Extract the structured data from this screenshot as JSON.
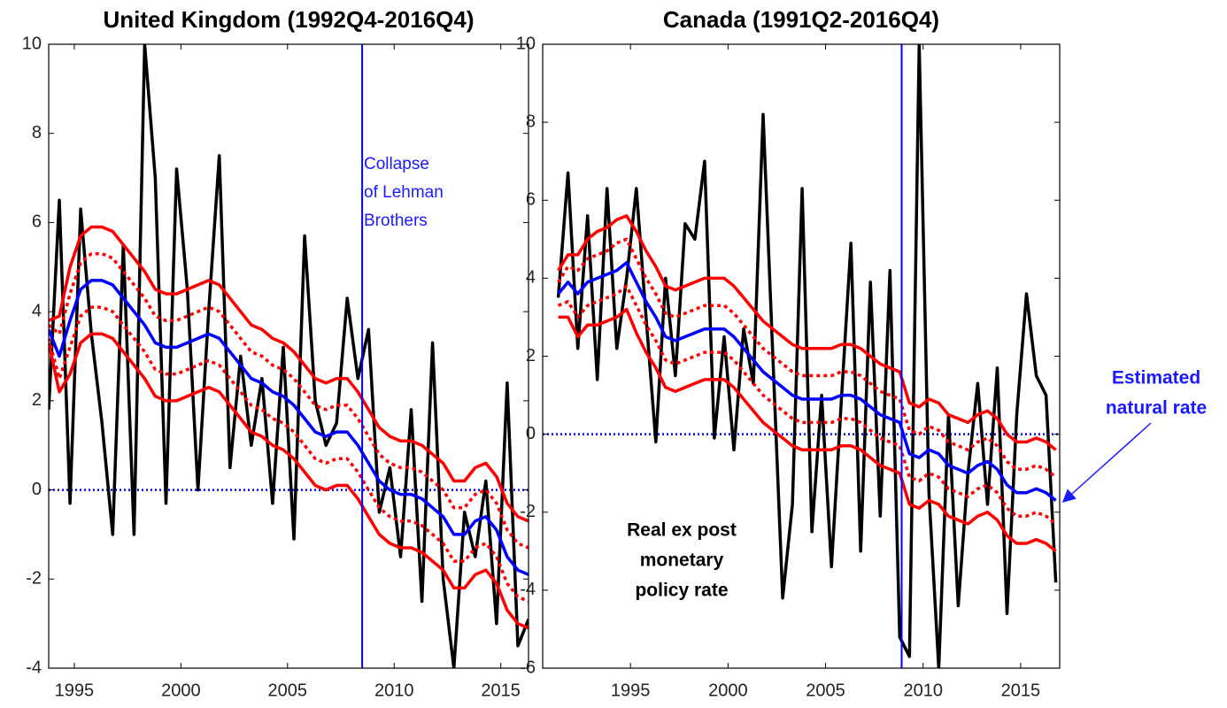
{
  "chart_data": [
    {
      "type": "line",
      "title": "United Kingdom (1992Q4-2016Q4)",
      "xlim": [
        1993.8,
        2016.3
      ],
      "xticks": [
        1995,
        2000,
        2005,
        2010,
        2015
      ],
      "ylim": [
        -4,
        10
      ],
      "yticks": [
        -4,
        -2,
        0,
        2,
        4,
        6,
        8,
        10
      ],
      "vline": 2008.5,
      "vline_color": "#0000ff",
      "hline": 0,
      "hline_color": "#0000ff",
      "annotation": [
        "Collapse",
        "of Lehman",
        "Brothers"
      ],
      "x": [
        1993.8,
        1994.3,
        1994.8,
        1995.3,
        1995.8,
        1996.3,
        1996.8,
        1997.3,
        1997.8,
        1998.3,
        1998.8,
        1999.3,
        1999.8,
        2000.3,
        2000.8,
        2001.3,
        2001.8,
        2002.3,
        2002.8,
        2003.3,
        2003.8,
        2004.3,
        2004.8,
        2005.3,
        2005.8,
        2006.3,
        2006.8,
        2007.3,
        2007.8,
        2008.3,
        2008.8,
        2009.3,
        2009.8,
        2010.3,
        2010.8,
        2011.3,
        2011.8,
        2012.3,
        2012.8,
        2013.3,
        2013.8,
        2014.3,
        2014.8,
        2015.3,
        2015.8,
        2016.3
      ],
      "series": [
        {
          "color": "#000000",
          "style": "solid",
          "values": [
            1.8,
            6.5,
            -0.3,
            6.3,
            3.5,
            1.5,
            -1.0,
            5.5,
            -1.0,
            10.0,
            7.0,
            -0.3,
            7.2,
            4.5,
            0.0,
            4.0,
            7.5,
            0.5,
            3.0,
            1.0,
            2.5,
            -0.3,
            3.2,
            -1.1,
            5.7,
            2.0,
            1.0,
            1.5,
            4.3,
            2.5,
            3.6,
            -0.5,
            0.5,
            -1.5,
            1.8,
            -2.5,
            3.3,
            -2.0,
            -4.0,
            -0.5,
            -1.5,
            0.2,
            -3.0,
            2.4,
            -3.5,
            -2.9
          ]
        },
        {
          "color": "#ff0000",
          "style": "solid",
          "values": [
            3.8,
            3.9,
            5.0,
            5.7,
            5.9,
            5.9,
            5.8,
            5.5,
            5.2,
            4.9,
            4.5,
            4.4,
            4.4,
            4.5,
            4.6,
            4.7,
            4.6,
            4.3,
            4.0,
            3.7,
            3.6,
            3.4,
            3.3,
            3.1,
            2.8,
            2.5,
            2.4,
            2.5,
            2.5,
            2.2,
            1.8,
            1.4,
            1.2,
            1.1,
            1.1,
            1.0,
            0.8,
            0.6,
            0.2,
            0.2,
            0.5,
            0.6,
            0.3,
            -0.3,
            -0.6,
            -0.7
          ]
        },
        {
          "color": "#ff0000",
          "style": "dotted",
          "values": [
            3.7,
            3.5,
            4.4,
            5.1,
            5.3,
            5.3,
            5.2,
            4.9,
            4.6,
            4.3,
            3.9,
            3.8,
            3.8,
            3.9,
            4.0,
            4.1,
            4.0,
            3.7,
            3.4,
            3.1,
            3.0,
            2.8,
            2.7,
            2.5,
            2.2,
            1.9,
            1.8,
            1.9,
            1.9,
            1.6,
            1.2,
            0.8,
            0.6,
            0.5,
            0.5,
            0.4,
            0.2,
            0.0,
            -0.4,
            -0.4,
            -0.1,
            0.0,
            -0.3,
            -0.9,
            -1.2,
            -1.3
          ]
        },
        {
          "color": "#ff0000",
          "style": "dotted",
          "values": [
            3.4,
            2.5,
            3.2,
            3.9,
            4.1,
            4.1,
            4.0,
            3.7,
            3.4,
            3.1,
            2.7,
            2.6,
            2.6,
            2.7,
            2.8,
            2.9,
            2.8,
            2.5,
            2.2,
            1.9,
            1.8,
            1.6,
            1.5,
            1.3,
            1.0,
            0.7,
            0.6,
            0.7,
            0.7,
            0.4,
            0.0,
            -0.4,
            -0.6,
            -0.7,
            -0.7,
            -0.8,
            -1.0,
            -1.2,
            -1.6,
            -1.6,
            -1.3,
            -1.2,
            -1.5,
            -2.1,
            -2.4,
            -2.5
          ]
        },
        {
          "color": "#ff0000",
          "style": "solid",
          "values": [
            3.3,
            2.2,
            2.6,
            3.3,
            3.5,
            3.5,
            3.4,
            3.1,
            2.8,
            2.5,
            2.1,
            2.0,
            2.0,
            2.1,
            2.2,
            2.3,
            2.2,
            1.9,
            1.6,
            1.3,
            1.2,
            1.0,
            0.9,
            0.7,
            0.4,
            0.1,
            0.0,
            0.1,
            0.1,
            -0.2,
            -0.6,
            -1.0,
            -1.2,
            -1.3,
            -1.3,
            -1.4,
            -1.6,
            -1.8,
            -2.2,
            -2.2,
            -1.9,
            -1.8,
            -2.1,
            -2.7,
            -3.0,
            -3.1
          ]
        },
        {
          "color": "#0000ff",
          "style": "solid",
          "values": [
            3.6,
            3.0,
            3.8,
            4.5,
            4.7,
            4.7,
            4.6,
            4.3,
            4.0,
            3.7,
            3.3,
            3.2,
            3.2,
            3.3,
            3.4,
            3.5,
            3.4,
            3.1,
            2.8,
            2.5,
            2.4,
            2.2,
            2.1,
            1.9,
            1.6,
            1.3,
            1.2,
            1.3,
            1.3,
            1.0,
            0.6,
            0.2,
            0.0,
            -0.1,
            -0.1,
            -0.2,
            -0.4,
            -0.6,
            -1.0,
            -1.0,
            -0.7,
            -0.6,
            -0.9,
            -1.5,
            -1.8,
            -1.9
          ]
        }
      ]
    },
    {
      "type": "line",
      "title": "Canada (1991Q2-2016Q4)",
      "xlim": [
        1990.5,
        2017
      ],
      "xticks": [
        1995,
        2000,
        2005,
        2010,
        2015
      ],
      "ylim": [
        -6,
        10
      ],
      "yticks": [
        -6,
        -4,
        -2,
        0,
        2,
        4,
        6,
        8,
        10
      ],
      "vline": 2008.9,
      "vline_color": "#0000ff",
      "hline": 0,
      "hline_color": "#0000ff",
      "annotation": [
        "Real ex post",
        "monetary",
        "policy rate"
      ],
      "annotation2": [
        "Estimated",
        "natural rate"
      ],
      "x": [
        1991.3,
        1991.8,
        1992.3,
        1992.8,
        1993.3,
        1993.8,
        1994.3,
        1994.8,
        1995.3,
        1995.8,
        1996.3,
        1996.8,
        1997.3,
        1997.8,
        1998.3,
        1998.8,
        1999.3,
        1999.8,
        2000.3,
        2000.8,
        2001.3,
        2001.8,
        2002.3,
        2002.8,
        2003.3,
        2003.8,
        2004.3,
        2004.8,
        2005.3,
        2005.8,
        2006.3,
        2006.8,
        2007.3,
        2007.8,
        2008.3,
        2008.8,
        2009.3,
        2009.8,
        2010.3,
        2010.8,
        2011.3,
        2011.8,
        2012.3,
        2012.8,
        2013.3,
        2013.8,
        2014.3,
        2014.8,
        2015.3,
        2015.8,
        2016.3,
        2016.8
      ],
      "series": [
        {
          "color": "#000000",
          "style": "solid",
          "values": [
            3.5,
            6.7,
            2.2,
            5.6,
            1.4,
            6.3,
            2.2,
            4.0,
            6.3,
            3.0,
            -0.2,
            4.0,
            1.5,
            5.4,
            5.0,
            7.0,
            -0.1,
            2.5,
            -0.4,
            2.7,
            1.3,
            8.2,
            2.0,
            -4.2,
            -1.8,
            6.3,
            -2.5,
            1.0,
            -3.4,
            0.8,
            4.9,
            -3.0,
            3.9,
            -2.1,
            4.2,
            -5.2,
            -5.7,
            10.0,
            -1.5,
            -6.0,
            0.5,
            -4.4,
            -1.0,
            1.3,
            -1.8,
            1.7,
            -4.6,
            0.5,
            3.6,
            1.5,
            1.0,
            -3.8
          ]
        },
        {
          "color": "#ff0000",
          "style": "solid",
          "values": [
            4.2,
            4.6,
            4.6,
            5.0,
            5.2,
            5.3,
            5.5,
            5.6,
            5.2,
            4.7,
            4.3,
            3.8,
            3.7,
            3.8,
            3.9,
            4.0,
            4.0,
            4.0,
            3.8,
            3.5,
            3.2,
            2.9,
            2.7,
            2.5,
            2.3,
            2.2,
            2.2,
            2.2,
            2.2,
            2.3,
            2.3,
            2.2,
            2.0,
            1.8,
            1.7,
            1.6,
            0.8,
            0.7,
            0.9,
            0.8,
            0.5,
            0.4,
            0.3,
            0.5,
            0.6,
            0.4,
            0.0,
            -0.2,
            -0.2,
            -0.1,
            -0.2,
            -0.4
          ]
        },
        {
          "color": "#ff0000",
          "style": "dotted",
          "values": [
            3.9,
            4.3,
            4.2,
            4.5,
            4.6,
            4.7,
            4.9,
            5.0,
            4.5,
            4.0,
            3.6,
            3.1,
            3.0,
            3.1,
            3.2,
            3.3,
            3.3,
            3.3,
            3.1,
            2.8,
            2.5,
            2.2,
            2.0,
            1.8,
            1.6,
            1.5,
            1.5,
            1.5,
            1.5,
            1.6,
            1.6,
            1.5,
            1.3,
            1.1,
            1.0,
            0.9,
            0.1,
            0.0,
            0.2,
            0.1,
            -0.2,
            -0.3,
            -0.4,
            -0.2,
            -0.1,
            -0.3,
            -0.7,
            -0.9,
            -0.9,
            -0.8,
            -0.9,
            -1.1
          ]
        },
        {
          "color": "#ff0000",
          "style": "dotted",
          "values": [
            3.3,
            3.4,
            3.0,
            3.3,
            3.4,
            3.5,
            3.6,
            3.8,
            3.3,
            2.8,
            2.4,
            1.9,
            1.8,
            1.9,
            2.0,
            2.1,
            2.1,
            2.1,
            1.9,
            1.6,
            1.3,
            1.0,
            0.8,
            0.6,
            0.4,
            0.3,
            0.3,
            0.3,
            0.3,
            0.4,
            0.4,
            0.3,
            0.1,
            -0.1,
            -0.2,
            -0.3,
            -1.1,
            -1.2,
            -1.0,
            -1.1,
            -1.4,
            -1.5,
            -1.6,
            -1.4,
            -1.3,
            -1.5,
            -1.9,
            -2.1,
            -2.1,
            -2.0,
            -2.1,
            -2.3
          ]
        },
        {
          "color": "#ff0000",
          "style": "solid",
          "values": [
            3.0,
            3.0,
            2.5,
            2.8,
            2.8,
            2.9,
            3.0,
            3.2,
            2.6,
            2.1,
            1.7,
            1.2,
            1.1,
            1.2,
            1.3,
            1.4,
            1.4,
            1.4,
            1.2,
            0.9,
            0.6,
            0.3,
            0.1,
            -0.1,
            -0.3,
            -0.4,
            -0.4,
            -0.4,
            -0.4,
            -0.3,
            -0.3,
            -0.4,
            -0.6,
            -0.8,
            -0.9,
            -1.0,
            -1.8,
            -1.9,
            -1.7,
            -1.8,
            -2.1,
            -2.2,
            -2.3,
            -2.1,
            -2.0,
            -2.2,
            -2.6,
            -2.8,
            -2.8,
            -2.7,
            -2.8,
            -3.0
          ]
        },
        {
          "color": "#0000ff",
          "style": "solid",
          "values": [
            3.6,
            3.9,
            3.6,
            3.9,
            4.0,
            4.1,
            4.2,
            4.4,
            3.9,
            3.4,
            3.0,
            2.5,
            2.4,
            2.5,
            2.6,
            2.7,
            2.7,
            2.7,
            2.5,
            2.2,
            1.9,
            1.6,
            1.4,
            1.2,
            1.0,
            0.9,
            0.9,
            0.9,
            0.9,
            1.0,
            1.0,
            0.9,
            0.7,
            0.5,
            0.4,
            0.3,
            -0.5,
            -0.6,
            -0.4,
            -0.5,
            -0.8,
            -0.9,
            -1.0,
            -0.8,
            -0.7,
            -0.9,
            -1.3,
            -1.5,
            -1.5,
            -1.4,
            -1.5,
            -1.7
          ]
        }
      ]
    }
  ]
}
